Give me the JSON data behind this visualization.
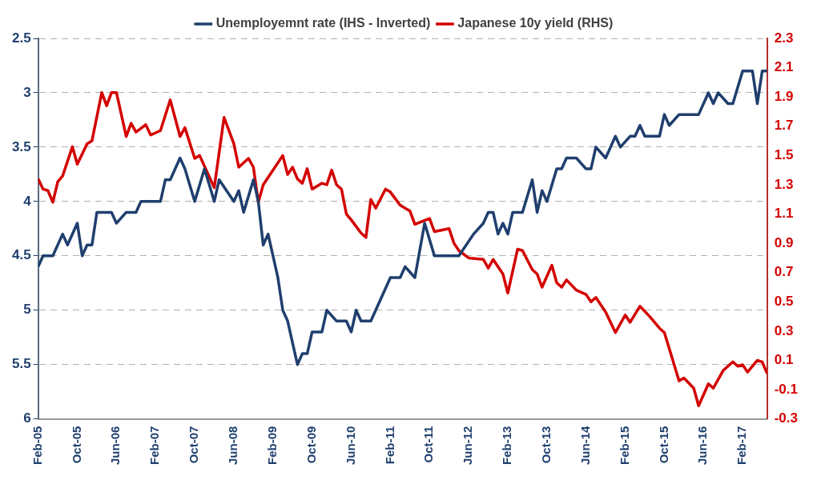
{
  "chart_data": {
    "type": "line",
    "xlim": [
      "2005-02",
      "2017-07"
    ],
    "xticks": [
      {
        "value": "2005-02",
        "label": "Feb-05"
      },
      {
        "value": "2005-10",
        "label": "Oct-05"
      },
      {
        "value": "2006-06",
        "label": "Jun-06"
      },
      {
        "value": "2007-02",
        "label": "Feb-07"
      },
      {
        "value": "2007-10",
        "label": "Oct-07"
      },
      {
        "value": "2008-06",
        "label": "Jun-08"
      },
      {
        "value": "2009-02",
        "label": "Feb-09"
      },
      {
        "value": "2009-10",
        "label": "Oct-09"
      },
      {
        "value": "2010-06",
        "label": "Jun-10"
      },
      {
        "value": "2011-02",
        "label": "Feb-11"
      },
      {
        "value": "2011-10",
        "label": "Oct-11"
      },
      {
        "value": "2012-06",
        "label": "Jun-12"
      },
      {
        "value": "2013-02",
        "label": "Feb-13"
      },
      {
        "value": "2013-10",
        "label": "Oct-13"
      },
      {
        "value": "2014-06",
        "label": "Jun-14"
      },
      {
        "value": "2015-02",
        "label": "Feb-15"
      },
      {
        "value": "2015-10",
        "label": "Oct-15"
      },
      {
        "value": "2016-06",
        "label": "Jun-16"
      },
      {
        "value": "2017-02",
        "label": "Feb-17"
      }
    ],
    "ylim": [
      6,
      2.5
    ],
    "yticks": [
      2.5,
      3,
      3.5,
      4,
      4.5,
      5,
      5.5,
      6
    ],
    "y2lim": [
      -0.3,
      2.3
    ],
    "y2ticks": [
      -0.3,
      -0.1,
      0.1,
      0.3,
      0.5,
      0.7,
      0.9,
      1.1,
      1.3,
      1.5,
      1.7,
      1.9,
      2.1,
      2.3
    ],
    "grid": "y",
    "legend": "top",
    "marker": "none",
    "series": [
      {
        "name": "Unemployemnt rate (IHS - Inverted)",
        "color": "#1f3f6e",
        "x": [
          "2005-02",
          "2005-03",
          "2005-05",
          "2005-07",
          "2005-08",
          "2005-10",
          "2005-11",
          "2005-12",
          "2006-01",
          "2006-02",
          "2006-05",
          "2006-06",
          "2006-08",
          "2006-10",
          "2006-11",
          "2007-03",
          "2007-04",
          "2007-05",
          "2007-07",
          "2007-08",
          "2007-10",
          "2007-12",
          "2008-02",
          "2008-03",
          "2008-06",
          "2008-07",
          "2008-08",
          "2008-10",
          "2008-11",
          "2008-12",
          "2009-01",
          "2009-03",
          "2009-04",
          "2009-05",
          "2009-06",
          "2009-07",
          "2009-08",
          "2009-09",
          "2009-10",
          "2009-12",
          "2010-01",
          "2010-03",
          "2010-05",
          "2010-06",
          "2010-07",
          "2010-08",
          "2010-10",
          "2011-02",
          "2011-04",
          "2011-05",
          "2011-07",
          "2011-09",
          "2011-11",
          "2012-04",
          "2012-07",
          "2012-09",
          "2012-10",
          "2012-11",
          "2012-12",
          "2013-01",
          "2013-02",
          "2013-03",
          "2013-05",
          "2013-07",
          "2013-08",
          "2013-09",
          "2013-10",
          "2013-12",
          "2014-01",
          "2014-02",
          "2014-04",
          "2014-06",
          "2014-07",
          "2014-08",
          "2014-10",
          "2014-12",
          "2015-01",
          "2015-03",
          "2015-04",
          "2015-05",
          "2015-06",
          "2015-09",
          "2015-10",
          "2015-11",
          "2016-01",
          "2016-05",
          "2016-07",
          "2016-08",
          "2016-09",
          "2016-11",
          "2016-12",
          "2017-02",
          "2017-04",
          "2017-05",
          "2017-06",
          "2017-07"
        ],
        "values": [
          4.6,
          4.5,
          4.5,
          4.3,
          4.4,
          4.2,
          4.5,
          4.4,
          4.4,
          4.1,
          4.1,
          4.2,
          4.1,
          4.1,
          4.0,
          4.0,
          3.8,
          3.8,
          3.6,
          3.7,
          4.0,
          3.7,
          4.0,
          3.8,
          4.0,
          3.9,
          4.1,
          3.8,
          4.0,
          4.4,
          4.3,
          4.7,
          5.0,
          5.1,
          5.3,
          5.5,
          5.4,
          5.4,
          5.2,
          5.2,
          5.0,
          5.1,
          5.1,
          5.2,
          5.0,
          5.1,
          5.1,
          4.7,
          4.7,
          4.6,
          4.7,
          4.2,
          4.5,
          4.5,
          4.3,
          4.2,
          4.1,
          4.1,
          4.3,
          4.2,
          4.3,
          4.1,
          4.1,
          3.8,
          4.1,
          3.9,
          4.0,
          3.7,
          3.7,
          3.6,
          3.6,
          3.7,
          3.7,
          3.5,
          3.6,
          3.4,
          3.5,
          3.4,
          3.4,
          3.3,
          3.4,
          3.4,
          3.2,
          3.3,
          3.2,
          3.2,
          3.0,
          3.1,
          3.0,
          3.1,
          3.1,
          2.8,
          2.8,
          3.1,
          2.8,
          2.8
        ]
      },
      {
        "name": "Japanese 10y yield (RHS)",
        "color": "#d40000",
        "axis": "y2",
        "x": [
          "2005-02",
          "2005-03",
          "2005-04",
          "2005-05",
          "2005-06",
          "2005-07",
          "2005-09",
          "2005-10",
          "2005-12",
          "2006-01",
          "2006-03",
          "2006-04",
          "2006-05",
          "2006-06",
          "2006-08",
          "2006-09",
          "2006-10",
          "2006-12",
          "2007-01",
          "2007-03",
          "2007-05",
          "2007-07",
          "2007-08",
          "2007-10",
          "2007-11",
          "2008-02",
          "2008-04",
          "2008-06",
          "2008-07",
          "2008-09",
          "2008-10",
          "2008-11",
          "2008-12",
          "2009-04",
          "2009-05",
          "2009-06",
          "2009-07",
          "2009-08",
          "2009-09",
          "2009-10",
          "2009-12",
          "2010-01",
          "2010-02",
          "2010-03",
          "2010-04",
          "2010-05",
          "2010-06",
          "2010-08",
          "2010-09",
          "2010-10",
          "2010-11",
          "2011-01",
          "2011-02",
          "2011-04",
          "2011-06",
          "2011-07",
          "2011-10",
          "2011-11",
          "2012-02",
          "2012-03",
          "2012-04",
          "2012-06",
          "2012-09",
          "2012-10",
          "2012-11",
          "2013-01",
          "2013-02",
          "2013-04",
          "2013-05",
          "2013-07",
          "2013-08",
          "2013-09",
          "2013-11",
          "2013-12",
          "2014-01",
          "2014-02",
          "2014-04",
          "2014-06",
          "2014-07",
          "2014-08",
          "2014-10",
          "2014-12",
          "2015-02",
          "2015-03",
          "2015-05",
          "2015-07",
          "2015-09",
          "2015-10",
          "2015-11",
          "2016-01",
          "2016-02",
          "2016-04",
          "2016-05",
          "2016-07",
          "2016-08",
          "2016-10",
          "2016-12",
          "2017-01",
          "2017-02",
          "2017-03",
          "2017-05",
          "2017-06",
          "2017-07"
        ],
        "values": [
          1.34,
          1.27,
          1.26,
          1.18,
          1.32,
          1.36,
          1.56,
          1.44,
          1.58,
          1.6,
          1.93,
          1.84,
          1.93,
          1.93,
          1.63,
          1.72,
          1.66,
          1.71,
          1.64,
          1.67,
          1.88,
          1.63,
          1.69,
          1.48,
          1.5,
          1.28,
          1.76,
          1.58,
          1.42,
          1.48,
          1.42,
          1.18,
          1.3,
          1.5,
          1.37,
          1.42,
          1.34,
          1.31,
          1.41,
          1.27,
          1.31,
          1.3,
          1.4,
          1.3,
          1.27,
          1.1,
          1.06,
          0.97,
          0.94,
          1.2,
          1.14,
          1.27,
          1.25,
          1.16,
          1.12,
          1.03,
          1.07,
          0.98,
          1.0,
          0.9,
          0.85,
          0.8,
          0.79,
          0.73,
          0.79,
          0.69,
          0.56,
          0.86,
          0.85,
          0.72,
          0.69,
          0.6,
          0.75,
          0.63,
          0.6,
          0.65,
          0.58,
          0.55,
          0.5,
          0.53,
          0.43,
          0.29,
          0.41,
          0.36,
          0.47,
          0.4,
          0.32,
          0.29,
          0.18,
          -0.04,
          -0.02,
          -0.09,
          -0.21,
          -0.06,
          -0.09,
          0.03,
          0.09,
          0.06,
          0.07,
          0.02,
          0.1,
          0.09,
          0.01
        ]
      }
    ]
  }
}
